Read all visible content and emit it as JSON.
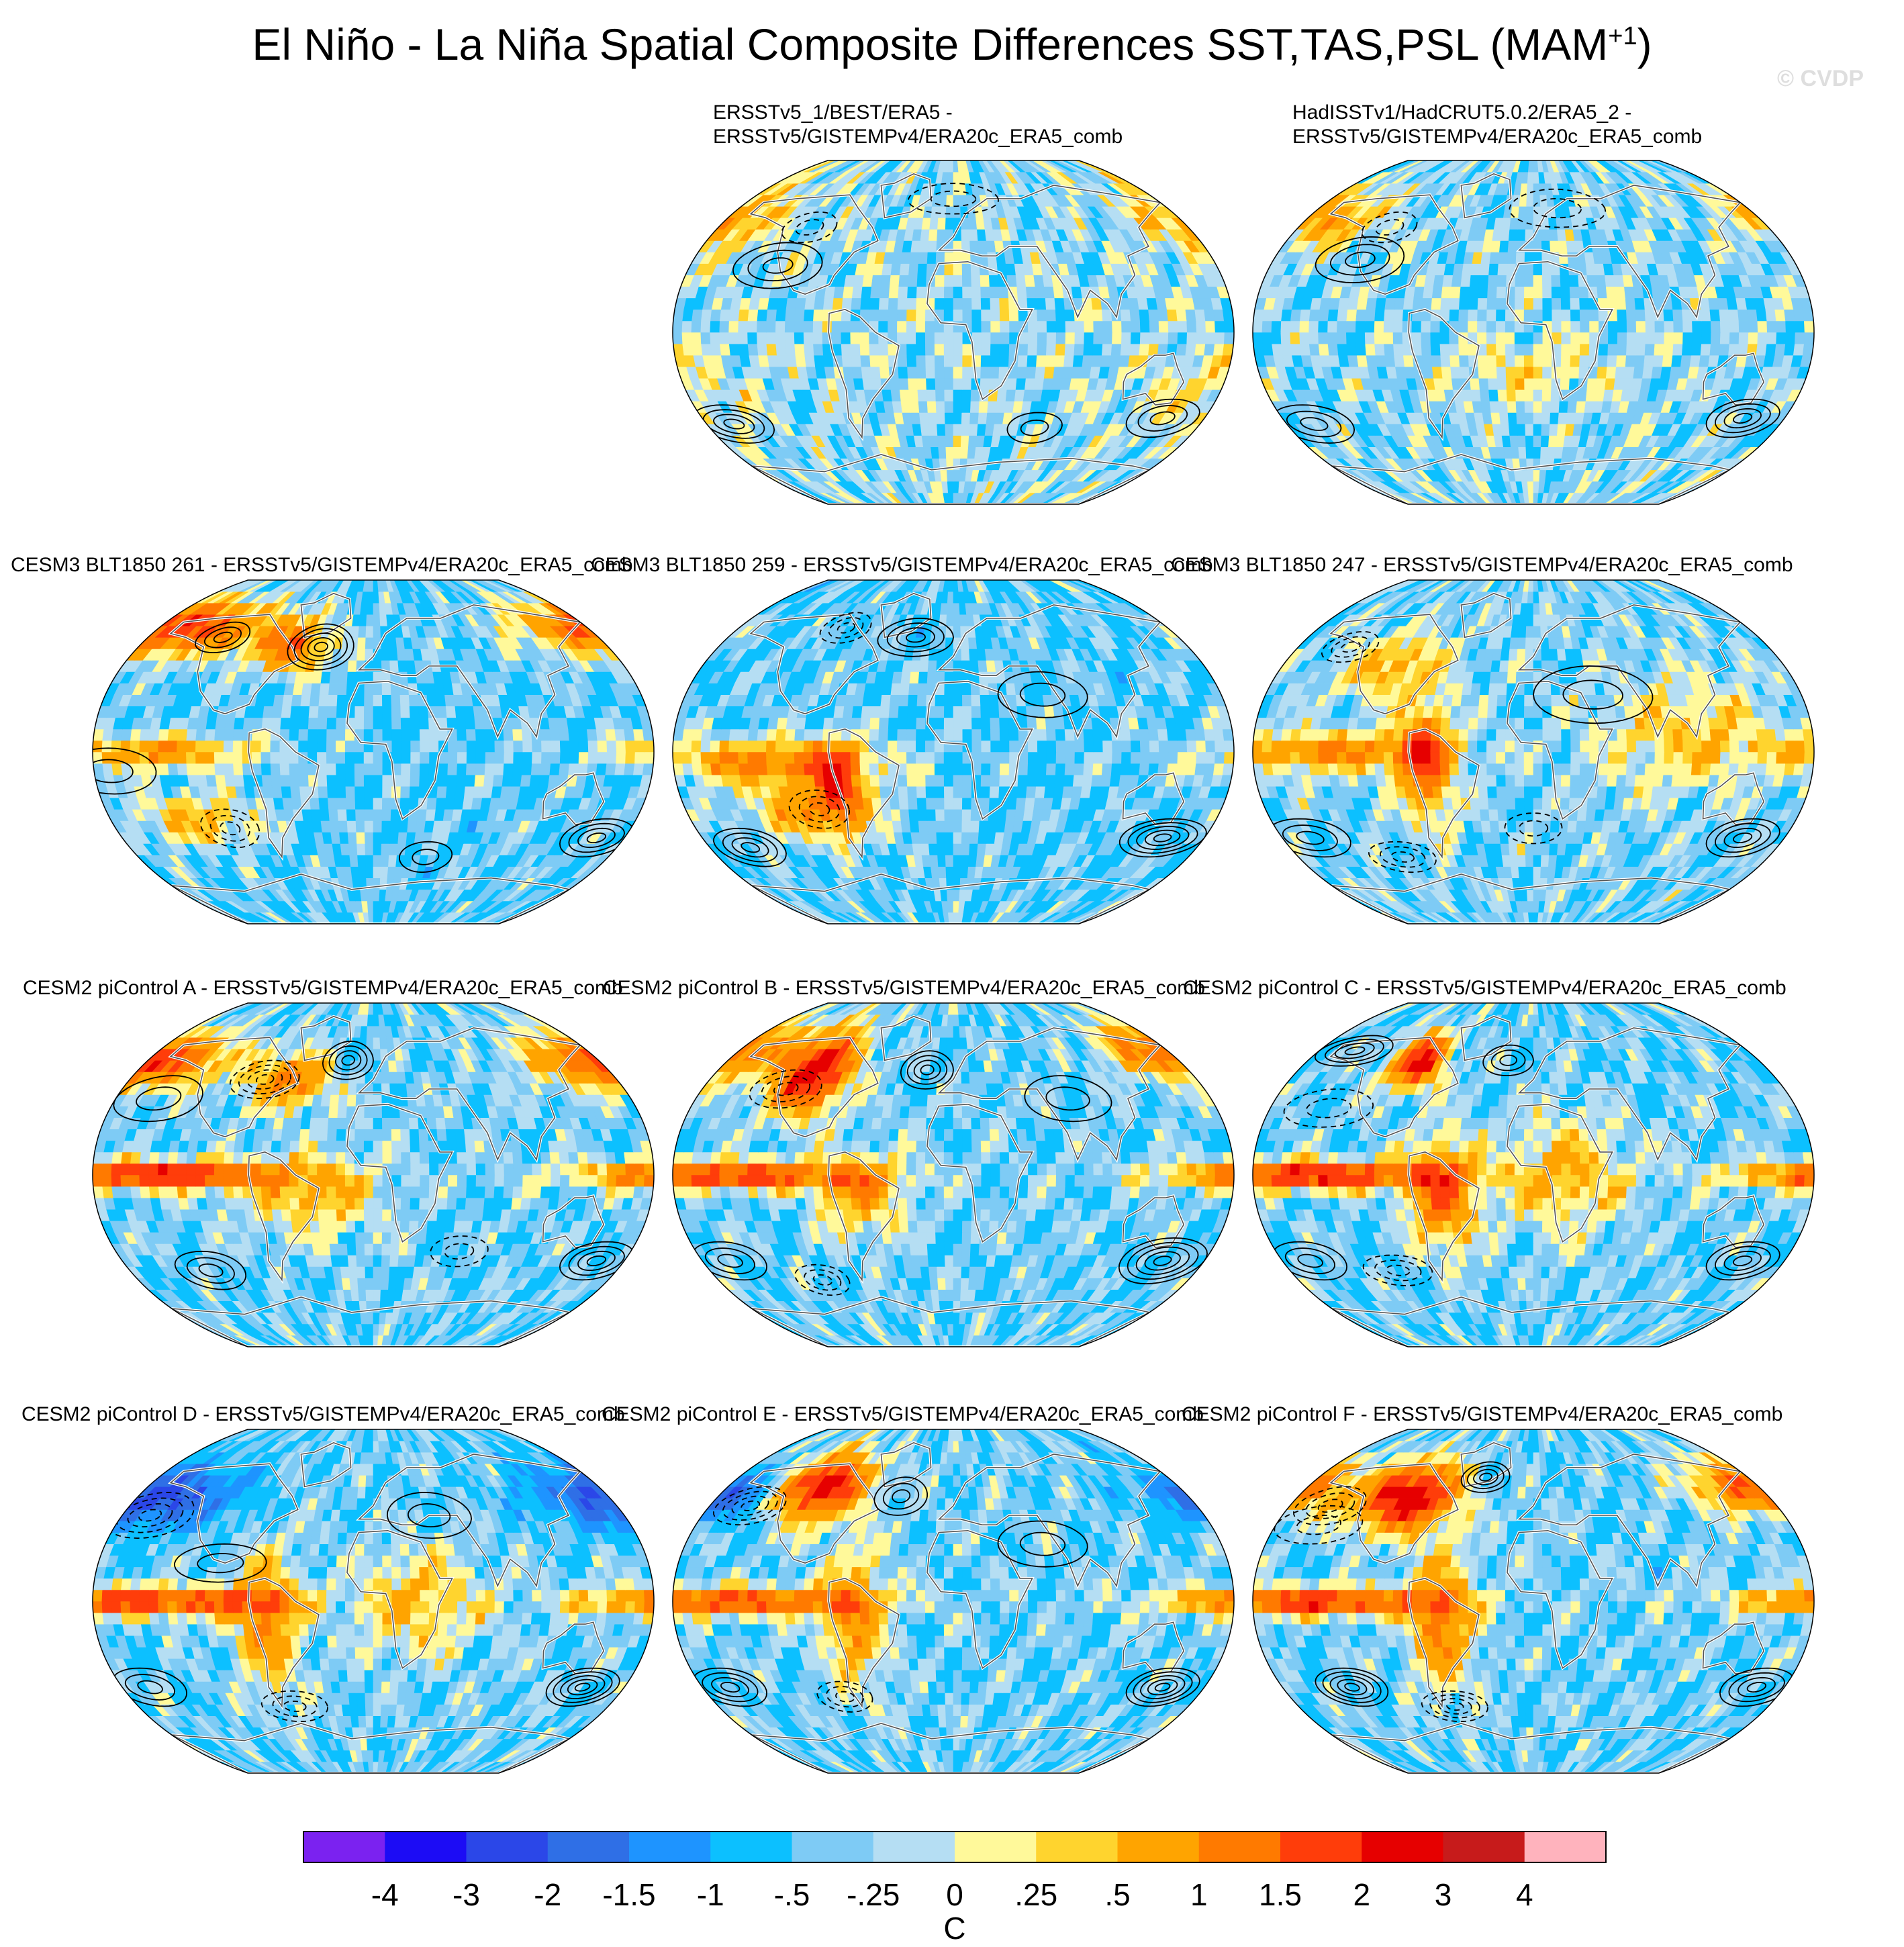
{
  "title": {
    "main": "El Niño - La Niña Spatial Composite Differences SST,TAS,PSL (MAM",
    "superscript": "+1",
    "close": ")"
  },
  "credit": "© CVDP",
  "panels": [
    {
      "label": [
        "ERSSTv5_1/BEST/ERA5 -",
        "ERSSTv5/GISTEMPv4/ERA20c_ERA5_comb"
      ],
      "pattern": "obs1"
    },
    {
      "label": [
        "HadISSTv1/HadCRUT5.0.2/ERA5_2 -",
        "ERSSTv5/GISTEMPv4/ERA20c_ERA5_comb"
      ],
      "pattern": "obs2"
    },
    {
      "label": [
        "CESM3 BLT1850 261 - ERSSTv5/GISTEMPv4/ERA20c_ERA5_comb"
      ],
      "pattern": "m1"
    },
    {
      "label": [
        "CESM3 BLT1850 259 - ERSSTv5/GISTEMPv4/ERA20c_ERA5_comb"
      ],
      "pattern": "m2"
    },
    {
      "label": [
        "CESM3 BLT1850 247 - ERSSTv5/GISTEMPv4/ERA20c_ERA5_comb"
      ],
      "pattern": "m3"
    },
    {
      "label": [
        "CESM2 piControl A - ERSSTv5/GISTEMPv4/ERA20c_ERA5_comb"
      ],
      "pattern": "m4"
    },
    {
      "label": [
        "CESM2 piControl B - ERSSTv5/GISTEMPv4/ERA20c_ERA5_comb"
      ],
      "pattern": "m5"
    },
    {
      "label": [
        "CESM2 piControl C - ERSSTv5/GISTEMPv4/ERA20c_ERA5_comb"
      ],
      "pattern": "m6"
    },
    {
      "label": [
        "CESM2 piControl D - ERSSTv5/GISTEMPv4/ERA20c_ERA5_comb"
      ],
      "pattern": "m7"
    },
    {
      "label": [
        "CESM2 piControl E - ERSSTv5/GISTEMPv4/ERA20c_ERA5_comb"
      ],
      "pattern": "m8"
    },
    {
      "label": [
        "CESM2 piControl F - ERSSTv5/GISTEMPv4/ERA20c_ERA5_comb"
      ],
      "pattern": "m9"
    }
  ],
  "chart_data": {
    "type": "heatmap",
    "title": "El Niño - La Niña Spatial Composite Differences SST,TAS,PSL (MAM+1)",
    "projection": "global map (Winkel/Robinson-like)",
    "variables": [
      "SST",
      "TAS",
      "PSL"
    ],
    "contours": "PSL difference: solid = positive, dashed = negative",
    "colorbar": {
      "unit": "C",
      "tick_labels": [
        "-4",
        "-3",
        "-2",
        "-1.5",
        "-1",
        "-.5",
        "-.25",
        "0",
        ".25",
        ".5",
        "1",
        "1.5",
        "2",
        "3",
        "4"
      ],
      "levels": [
        -4,
        -3,
        -2,
        -1.5,
        -1,
        -0.5,
        -0.25,
        0,
        0.25,
        0.5,
        1,
        1.5,
        2,
        3,
        4
      ],
      "colors": [
        "#7b22f0",
        "#1c0cf5",
        "#2b47e8",
        "#2f6fe6",
        "#1e94ff",
        "#0cc0ff",
        "#7ecbf5",
        "#b5def3",
        "#fff99a",
        "#ffd42e",
        "#ffa400",
        "#ff7a00",
        "#ff3d0a",
        "#e60000",
        "#c71b1b",
        "#ffb3bd"
      ]
    },
    "panels": [
      {
        "name": "ERSSTv5_1/BEST/ERA5 - ERSSTv5/GISTEMPv4/ERA20c_ERA5_comb",
        "pattern": "weak mixed anomalies"
      },
      {
        "name": "HadISSTv1/HadCRUT5.0.2/ERA5_2 - ERSSTv5/GISTEMPv4/ERA20c_ERA5_comb",
        "pattern": "weak mixed anomalies"
      },
      {
        "name": "CESM3 BLT1850 261",
        "pattern": "warm central/east Pacific, warm N Pacific/Alaska"
      },
      {
        "name": "CESM3 BLT1850 259",
        "pattern": "warm tropical Pacific extending SE"
      },
      {
        "name": "CESM3 BLT1850 247",
        "pattern": "warm tropical Pacific, warm Americas"
      },
      {
        "name": "CESM2 piControl A",
        "pattern": "strong warm equatorial Pacific"
      },
      {
        "name": "CESM2 piControl B",
        "pattern": "warm equatorial Pacific, warm N America"
      },
      {
        "name": "CESM2 piControl C",
        "pattern": "strong warm equatorial Pacific"
      },
      {
        "name": "CESM2 piControl D",
        "pattern": "warm equatorial Pacific, cold N Pacific"
      },
      {
        "name": "CESM2 piControl E",
        "pattern": "warm equatorial Pacific, warm N America"
      },
      {
        "name": "CESM2 piControl F",
        "pattern": "warm equatorial Pacific, warm N America"
      }
    ]
  }
}
